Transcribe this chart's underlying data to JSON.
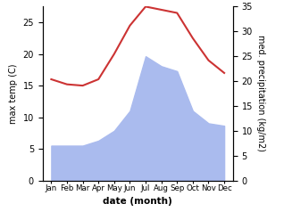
{
  "months": [
    "Jan",
    "Feb",
    "Mar",
    "Apr",
    "May",
    "Jun",
    "Jul",
    "Aug",
    "Sep",
    "Oct",
    "Nov",
    "Dec"
  ],
  "temperature": [
    16.0,
    15.2,
    15.0,
    16.0,
    20.0,
    24.5,
    27.5,
    27.0,
    26.5,
    22.5,
    19.0,
    17.0
  ],
  "precipitation": [
    7.0,
    7.0,
    7.0,
    8.0,
    10.0,
    14.0,
    25.0,
    23.0,
    22.0,
    14.0,
    11.5,
    11.0
  ],
  "temp_color": "#cc3333",
  "precip_color": "#aabbee",
  "temp_ylabel": "max temp (C)",
  "precip_ylabel": "med. precipitation (kg/m2)",
  "xlabel": "date (month)",
  "temp_ylim": [
    0,
    27.5
  ],
  "temp_yticks": [
    0,
    5,
    10,
    15,
    20,
    25
  ],
  "precip_ylim": [
    0,
    35
  ],
  "precip_yticks": [
    0,
    5,
    10,
    15,
    20,
    25,
    30,
    35
  ],
  "background_color": "#ffffff"
}
